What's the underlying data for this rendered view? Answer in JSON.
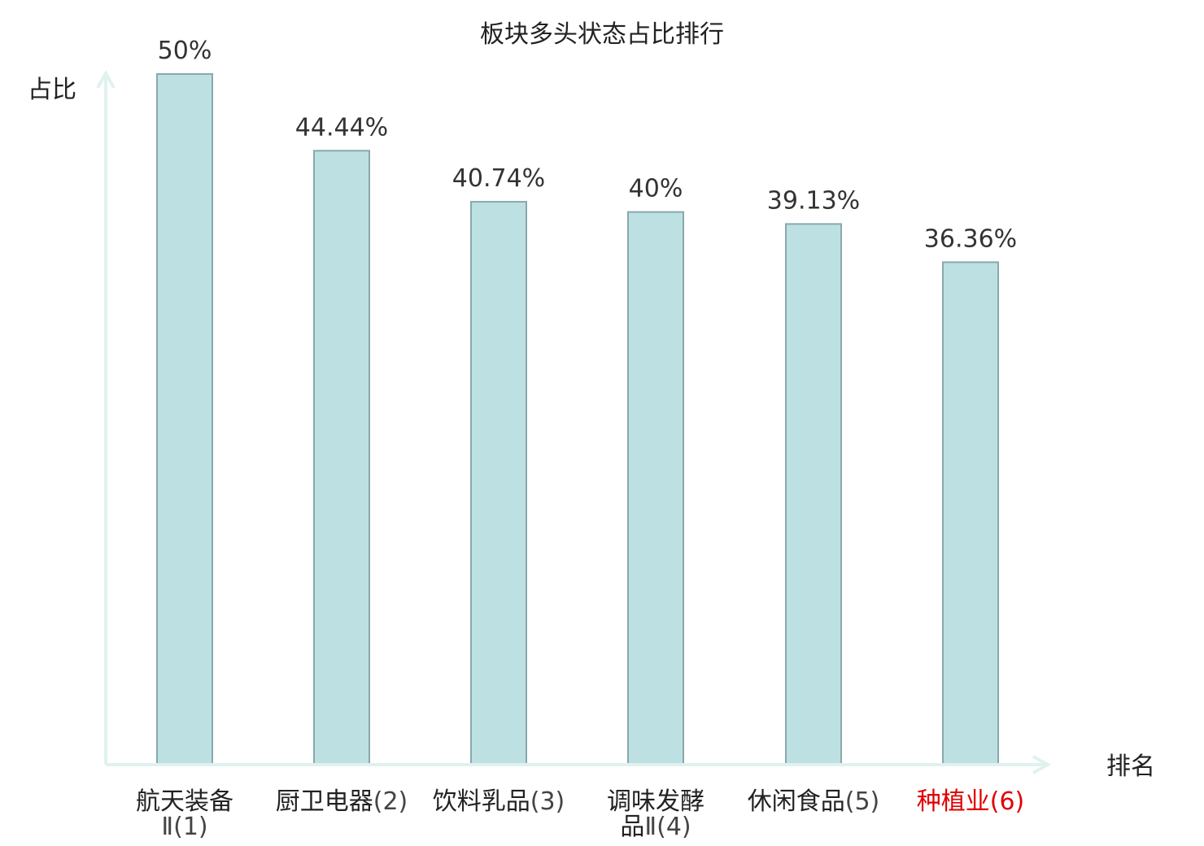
{
  "chart_data": {
    "type": "bar",
    "title": "板块多头状态占比排行",
    "ylabel": "占比",
    "xlabel": "排名",
    "ylim": [
      0,
      50
    ],
    "grid": false,
    "categories": [
      {
        "name": "航天装备Ⅱ",
        "rank": "(1)",
        "highlight": false
      },
      {
        "name": "厨卫电器",
        "rank": "(2)",
        "highlight": false
      },
      {
        "name": "饮料乳品",
        "rank": "(3)",
        "highlight": false
      },
      {
        "name": "调味发酵品Ⅱ",
        "rank": "(4)",
        "highlight": false
      },
      {
        "name": "休闲食品",
        "rank": "(5)",
        "highlight": false
      },
      {
        "name": "种植业",
        "rank": "(6)",
        "highlight": true
      }
    ],
    "values": [
      50,
      44.44,
      40.74,
      40,
      39.13,
      36.36
    ],
    "value_labels": [
      "50%",
      "44.44%",
      "40.74%",
      "40%",
      "39.13%",
      "36.36%"
    ],
    "colors": {
      "bar_fill": "#bde0e3",
      "bar_stroke": "#8aa8ac",
      "axis": "#e0f2ef",
      "highlight_text": "#e00000",
      "normal_text": "#222222",
      "rank_text": "#444444"
    }
  }
}
